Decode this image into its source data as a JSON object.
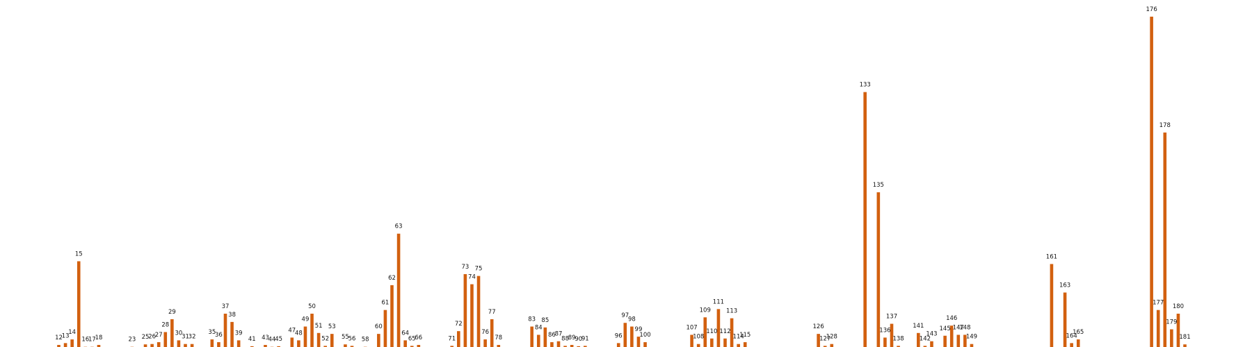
{
  "chart_data": {
    "type": "bar",
    "title": "",
    "xlabel": "",
    "ylabel": "",
    "grid": false,
    "bar_color": "#d2600f",
    "ylim": [
      0,
      180
    ],
    "bars": [
      {
        "x": 12,
        "label": "12",
        "value": 1.5
      },
      {
        "x": 13,
        "label": "13",
        "value": 2.5
      },
      {
        "x": 14,
        "label": "14",
        "value": 4.5
      },
      {
        "x": 15,
        "label": "15",
        "value": 47
      },
      {
        "x": 16,
        "label": "16",
        "value": 0.5
      },
      {
        "x": 17,
        "label": "17",
        "value": 0.5
      },
      {
        "x": 18,
        "label": "18",
        "value": 1.5
      },
      {
        "x": 23,
        "label": "23",
        "value": 0.5
      },
      {
        "x": 25,
        "label": "25",
        "value": 1.8
      },
      {
        "x": 26,
        "label": "26",
        "value": 2.0
      },
      {
        "x": 27,
        "label": "27",
        "value": 3.0
      },
      {
        "x": 28,
        "label": "28",
        "value": 8.5
      },
      {
        "x": 29,
        "label": "29",
        "value": 15.5
      },
      {
        "x": 30,
        "label": "30",
        "value": 4.0
      },
      {
        "x": 31,
        "label": "31",
        "value": 2.0
      },
      {
        "x": 32,
        "label": "32",
        "value": 2.0
      },
      {
        "x": 35,
        "label": "35",
        "value": 4.5
      },
      {
        "x": 36,
        "label": "36",
        "value": 3.0
      },
      {
        "x": 37,
        "label": "37",
        "value": 18.5
      },
      {
        "x": 38,
        "label": "38",
        "value": 14.0
      },
      {
        "x": 39,
        "label": "39",
        "value": 4.0
      },
      {
        "x": 41,
        "label": "41",
        "value": 0.8
      },
      {
        "x": 43,
        "label": "43",
        "value": 1.5
      },
      {
        "x": 44,
        "label": "44",
        "value": 0.5
      },
      {
        "x": 45,
        "label": "45",
        "value": 0.8
      },
      {
        "x": 47,
        "label": "47",
        "value": 5.5
      },
      {
        "x": 48,
        "label": "48",
        "value": 4.0
      },
      {
        "x": 49,
        "label": "49",
        "value": 11.5
      },
      {
        "x": 50,
        "label": "50",
        "value": 18.5
      },
      {
        "x": 51,
        "label": "51",
        "value": 8.0
      },
      {
        "x": 52,
        "label": "52",
        "value": 1.0
      },
      {
        "x": 53,
        "label": "53",
        "value": 7.5
      },
      {
        "x": 55,
        "label": "55",
        "value": 1.8
      },
      {
        "x": 56,
        "label": "56",
        "value": 1.0
      },
      {
        "x": 58,
        "label": "58",
        "value": 0.5
      },
      {
        "x": 60,
        "label": "60",
        "value": 7.5
      },
      {
        "x": 61,
        "label": "61",
        "value": 20.5
      },
      {
        "x": 62,
        "label": "62",
        "value": 34.0
      },
      {
        "x": 63,
        "label": "63",
        "value": 62.0
      },
      {
        "x": 64,
        "label": "64",
        "value": 4.0
      },
      {
        "x": 65,
        "label": "65",
        "value": 1.0
      },
      {
        "x": 66,
        "label": "66",
        "value": 1.5
      },
      {
        "x": 71,
        "label": "71",
        "value": 1.0
      },
      {
        "x": 72,
        "label": "72",
        "value": 9.0
      },
      {
        "x": 73,
        "label": "73",
        "value": 40.0
      },
      {
        "x": 74,
        "label": "74",
        "value": 34.5
      },
      {
        "x": 75,
        "label": "75",
        "value": 39.0
      },
      {
        "x": 76,
        "label": "76",
        "value": 4.5
      },
      {
        "x": 77,
        "label": "77",
        "value": 15.5
      },
      {
        "x": 78,
        "label": "78",
        "value": 1.5
      },
      {
        "x": 83,
        "label": "83",
        "value": 11.5
      },
      {
        "x": 84,
        "label": "84",
        "value": 7.0
      },
      {
        "x": 85,
        "label": "85",
        "value": 11.0
      },
      {
        "x": 86,
        "label": "86",
        "value": 3.0
      },
      {
        "x": 87,
        "label": "87",
        "value": 3.5
      },
      {
        "x": 88,
        "label": "88",
        "value": 1.0
      },
      {
        "x": 89,
        "label": "89",
        "value": 1.5
      },
      {
        "x": 90,
        "label": "90",
        "value": 0.8
      },
      {
        "x": 91,
        "label": "91",
        "value": 1.0
      },
      {
        "x": 96,
        "label": "96",
        "value": 2.5
      },
      {
        "x": 97,
        "label": "97",
        "value": 13.5
      },
      {
        "x": 98,
        "label": "98",
        "value": 11.5
      },
      {
        "x": 99,
        "label": "99",
        "value": 6.0
      },
      {
        "x": 100,
        "label": "100",
        "value": 3.0
      },
      {
        "x": 107,
        "label": "107",
        "value": 7.0
      },
      {
        "x": 108,
        "label": "108",
        "value": 2.0
      },
      {
        "x": 109,
        "label": "109",
        "value": 16.5
      },
      {
        "x": 110,
        "label": "110",
        "value": 5.0
      },
      {
        "x": 111,
        "label": "111",
        "value": 21.0
      },
      {
        "x": 112,
        "label": "112",
        "value": 5.0
      },
      {
        "x": 113,
        "label": "113",
        "value": 16.0
      },
      {
        "x": 114,
        "label": "114",
        "value": 2.0
      },
      {
        "x": 115,
        "label": "115",
        "value": 3.0
      },
      {
        "x": 126,
        "label": "126",
        "value": 7.5
      },
      {
        "x": 127,
        "label": "127",
        "value": 1.0
      },
      {
        "x": 128,
        "label": "128",
        "value": 2.0
      },
      {
        "x": 133,
        "label": "133",
        "value": 139.0
      },
      {
        "x": 135,
        "label": "135",
        "value": 84.5
      },
      {
        "x": 136,
        "label": "136",
        "value": 5.5
      },
      {
        "x": 137,
        "label": "137",
        "value": 13.0
      },
      {
        "x": 138,
        "label": "138",
        "value": 1.0
      },
      {
        "x": 141,
        "label": "141",
        "value": 8.0
      },
      {
        "x": 142,
        "label": "142",
        "value": 1.0
      },
      {
        "x": 143,
        "label": "143",
        "value": 3.5
      },
      {
        "x": 145,
        "label": "145",
        "value": 6.5
      },
      {
        "x": 146,
        "label": "146",
        "value": 12.0
      },
      {
        "x": 147,
        "label": "147",
        "value": 7.0
      },
      {
        "x": 148,
        "label": "148",
        "value": 7.0
      },
      {
        "x": 149,
        "label": "149",
        "value": 2.0
      },
      {
        "x": 161,
        "label": "161",
        "value": 45.5
      },
      {
        "x": 163,
        "label": "163",
        "value": 30.0
      },
      {
        "x": 164,
        "label": "164",
        "value": 2.5
      },
      {
        "x": 165,
        "label": "165",
        "value": 4.5
      },
      {
        "x": 176,
        "label": "176",
        "value": 180.0
      },
      {
        "x": 177,
        "label": "177",
        "value": 20.5
      },
      {
        "x": 178,
        "label": "178",
        "value": 117.0
      },
      {
        "x": 179,
        "label": "179",
        "value": 10.0
      },
      {
        "x": 180,
        "label": "180",
        "value": 18.5
      },
      {
        "x": 181,
        "label": "181",
        "value": 1.8
      }
    ]
  }
}
